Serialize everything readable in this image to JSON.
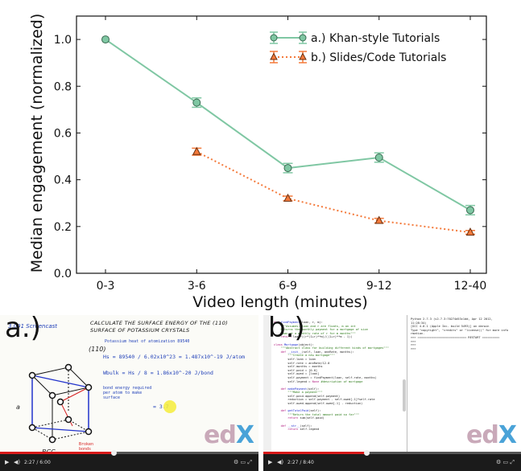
{
  "chart_data": {
    "type": "line",
    "categories": [
      "0-3",
      "3-6",
      "6-9",
      "9-12",
      "12-40"
    ],
    "xlabel": "Video length (minutes)",
    "ylabel": "Median engagement (normalized)",
    "ylim": [
      0.0,
      1.1
    ],
    "yticks": [
      0.0,
      0.2,
      0.4,
      0.6,
      0.8,
      1.0
    ],
    "ytick_labels": [
      "0.0",
      "0.2",
      "0.4",
      "0.6",
      "0.8",
      "1.0"
    ],
    "grid": false,
    "legend": "top-right",
    "series": [
      {
        "name": "a.) Khan-style Tutorials",
        "color": "#7fc7a3",
        "marker": "circle",
        "line": "solid",
        "values": [
          1.0,
          0.73,
          0.45,
          0.495,
          0.27
        ],
        "err": [
          0.0,
          0.02,
          0.02,
          0.02,
          0.02
        ]
      },
      {
        "name": "b.) Slides/Code Tutorials",
        "color": "#f47a3b",
        "marker": "triangle",
        "line": "dotted",
        "values": [
          null,
          0.52,
          0.32,
          0.225,
          0.175
        ],
        "err": [
          null,
          0.015,
          0.01,
          0.01,
          0.008
        ]
      }
    ]
  },
  "panels": {
    "a": {
      "label": "a.)",
      "header": "3.091 Screencast",
      "title": "CALCULATE THE SURFACE ENERGY OF THE (110) SURFACE OF POTASSIUM CRYSTALS",
      "line1": "Potassium heat of atomization 89540",
      "line2": "Hs = 89540 / 6.02x10^23 = 1.487x10^-19 J/atom",
      "line3": "Wbulk = Hs / 8 = 1.86x10^-20 J/bond",
      "line4": "bond energy required per atom to make surface",
      "line5": "= 3.7",
      "miller": "(110)",
      "axis_a": "a",
      "bcc": "BCC",
      "broken": "Broken bonds",
      "time": "2:27 / 6:00"
    },
    "b": {
      "label": "b.)",
      "time": "2:27 / 8:40",
      "code": [
        [
          "c-kw",
          "def "
        ],
        [
          "c-nm",
          "findPayment"
        ],
        [
          "c-tx",
          "(loan, r, m):\n"
        ],
        [
          "c-str",
          "    \"\"\"Assumes: loan and r are floats, m an int\n"
        ],
        [
          "c-str",
          "    Returns the monthly payment for a mortgage of size\n"
        ],
        [
          "c-str",
          "    loan at a monthly rate of r for m months\"\"\"\n"
        ],
        [
          "c-kw",
          "    return "
        ],
        [
          "c-tx",
          "loan*((r*(1+r)**m)/((1+r)**m - 1))\n\n"
        ],
        [
          "c-kw",
          "class "
        ],
        [
          "c-nm",
          "Mortgage"
        ],
        [
          "c-tx",
          "(object):\n"
        ],
        [
          "c-str",
          "    \"\"\"Abstract class for building different kinds of mortgages\"\"\"\n"
        ],
        [
          "c-kw",
          "    def "
        ],
        [
          "c-nm",
          "__init__"
        ],
        [
          "c-tx",
          "(self, loan, annRate, months):\n"
        ],
        [
          "c-str",
          "        \"\"\"Create a new mortgage\"\"\"\n"
        ],
        [
          "c-tx",
          "        self.loan = loan\n        self.rate = annRate/12.0\n        self.months = months\n        self.paid = [0.0]\n        self.owed = [loan]\n        self.payment = findPayment(loan, self.rate, months)\n        self.legend = "
        ],
        [
          "c-kw",
          "None "
        ],
        [
          "c-str",
          "#description of mortgage\n\n"
        ],
        [
          "c-kw",
          "    def "
        ],
        [
          "c-nm",
          "makePayment"
        ],
        [
          "c-tx",
          "(self):\n"
        ],
        [
          "c-str",
          "        \"\"\"Make a payment\"\"\"\n"
        ],
        [
          "c-tx",
          "        self.paid.append(self.payment)\n        reduction = self.payment - self.owed[-1]*self.rate\n        self.owed.append(self.owed[-1] - reduction)\n\n"
        ],
        [
          "c-kw",
          "    def "
        ],
        [
          "c-nm",
          "getTotalPaid"
        ],
        [
          "c-tx",
          "(self):\n"
        ],
        [
          "c-str",
          "        \"\"\"Return the total amount paid so far\"\"\"\n"
        ],
        [
          "c-kw",
          "        return "
        ],
        [
          "c-tx",
          "sum(self.paid)\n\n"
        ],
        [
          "c-kw",
          "    def "
        ],
        [
          "c-nm",
          "__str__"
        ],
        [
          "c-tx",
          "(self):\n"
        ],
        [
          "c-kw",
          "        return "
        ],
        [
          "c-tx",
          "self.legend\n"
        ]
      ],
      "shell": "Python 2.7.3 (v2.7.3:70274d53c1dd, Apr 12 2012,\n11:28:34)\n[GCC 4.0.1 (Apple Inc. build 5493)] on darwin\nType \"copyright\", \"credits\" or \"license()\" for more info\nrmation.\n>>> ============================ RESTART ==========\n>>>\n>>>\n>>>"
    }
  },
  "logo_text": "edX"
}
